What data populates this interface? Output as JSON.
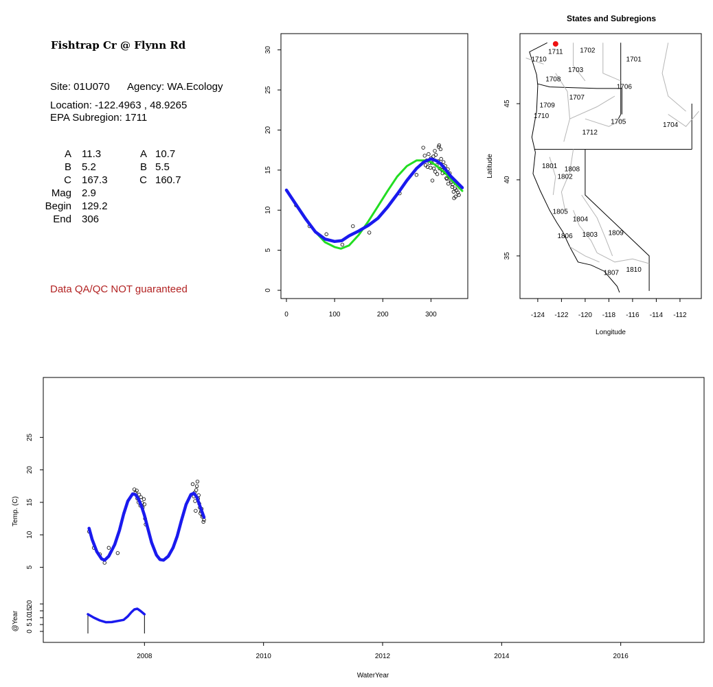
{
  "header": {
    "title": "Fishtrap Cr @ Flynn Rd",
    "site": "Site: 01U070",
    "agency": "Agency: WA.Ecology",
    "location": "Location: -122.4963 , 48.9265",
    "subregion": "EPA Subregion: 1711",
    "qa_note": "Data QA/QC NOT guaranteed"
  },
  "params": {
    "labels": [
      "A",
      "B",
      "C",
      "Mag",
      "Begin",
      "End"
    ],
    "col1": [
      "11.3",
      "5.2",
      "167.3",
      "2.9",
      "129.2",
      "306"
    ],
    "labels2": [
      "A",
      "B",
      "C"
    ],
    "col2": [
      "10.7",
      "5.5",
      "160.7"
    ]
  },
  "colors": {
    "fit_sine": "#22dd22",
    "fit_smooth": "#1a1aee",
    "site_marker": "#ee1111",
    "qa_text": "#b22222"
  },
  "chart_data": [
    {
      "type": "scatter",
      "title": "",
      "xlabel": "",
      "ylabel": "",
      "xlim": [
        0,
        365
      ],
      "ylim": [
        0,
        31
      ],
      "x_ticks": [
        "0",
        "100",
        "200",
        "300"
      ],
      "y_ticks": [
        "0",
        "5",
        "10",
        "15",
        "20",
        "25",
        "30"
      ],
      "points": [
        [
          20,
          10.6
        ],
        [
          48,
          8.0
        ],
        [
          83,
          7.0
        ],
        [
          116,
          5.7
        ],
        [
          138,
          8.0
        ],
        [
          172,
          7.2
        ],
        [
          235,
          12.1
        ],
        [
          270,
          14.4
        ],
        [
          284,
          17.8
        ],
        [
          287,
          16.8
        ],
        [
          289,
          15.6
        ],
        [
          291,
          16.2
        ],
        [
          293,
          15.4
        ],
        [
          295,
          17.0
        ],
        [
          297,
          15.9
        ],
        [
          299,
          15.3
        ],
        [
          300,
          16.5
        ],
        [
          302,
          15.9
        ],
        [
          303,
          13.7
        ],
        [
          305,
          16.7
        ],
        [
          306,
          15.2
        ],
        [
          308,
          17.4
        ],
        [
          309,
          14.8
        ],
        [
          310,
          16.9
        ],
        [
          312,
          15.6
        ],
        [
          313,
          14.5
        ],
        [
          315,
          16.1
        ],
        [
          316,
          17.9
        ],
        [
          317,
          18.1
        ],
        [
          318,
          15.2
        ],
        [
          320,
          17.6
        ],
        [
          321,
          16.4
        ],
        [
          323,
          15.0
        ],
        [
          324,
          14.6
        ],
        [
          326,
          16.0
        ],
        [
          327,
          15.3
        ],
        [
          329,
          14.7
        ],
        [
          330,
          15.5
        ],
        [
          332,
          14.0
        ],
        [
          333,
          13.9
        ],
        [
          335,
          15.1
        ],
        [
          336,
          13.3
        ],
        [
          338,
          14.2
        ],
        [
          339,
          14.6
        ],
        [
          341,
          13.7
        ],
        [
          342,
          13.5
        ],
        [
          344,
          12.9
        ],
        [
          345,
          13.2
        ],
        [
          347,
          12.3
        ],
        [
          348,
          11.5
        ],
        [
          350,
          12.7
        ],
        [
          351,
          11.7
        ],
        [
          353,
          12.5
        ],
        [
          355,
          13.3
        ],
        [
          356,
          12.2
        ],
        [
          358,
          11.9
        ]
      ],
      "series": [
        {
          "name": "",
          "color": "#22dd22",
          "x": [
            0,
            20,
            40,
            60,
            80,
            100,
            113,
            130,
            150,
            170,
            190,
            210,
            230,
            250,
            270,
            290,
            300,
            310,
            330,
            350,
            365
          ],
          "y": [
            12.5,
            10.8,
            9.0,
            7.3,
            6.0,
            5.4,
            5.2,
            5.6,
            6.9,
            8.6,
            10.5,
            12.4,
            14.2,
            15.5,
            16.2,
            16.2,
            16.0,
            15.6,
            14.6,
            13.3,
            12.4
          ]
        },
        {
          "name": "",
          "color": "#1a1aee",
          "x": [
            0,
            20,
            40,
            60,
            80,
            100,
            115,
            130,
            150,
            170,
            190,
            210,
            230,
            250,
            270,
            285,
            300,
            310,
            320,
            330,
            340,
            350,
            360,
            365
          ],
          "y": [
            12.5,
            10.7,
            8.9,
            7.3,
            6.4,
            6.1,
            6.2,
            6.8,
            7.4,
            8.1,
            9.0,
            10.4,
            12.0,
            13.7,
            15.2,
            16.0,
            16.4,
            16.2,
            15.8,
            15.1,
            14.3,
            13.7,
            13.1,
            12.8
          ]
        }
      ]
    },
    {
      "type": "map",
      "title": "States and Subregions",
      "xlabel": "Longitude",
      "ylabel": "Latitude",
      "xlim": [
        -125.5,
        -110.2
      ],
      "ylim": [
        32.2,
        49.6
      ],
      "x_ticks": [
        "-124",
        "-122",
        "-120",
        "-118",
        "-116",
        "-114",
        "-112"
      ],
      "y_ticks": [
        "35",
        "40",
        "45"
      ],
      "site": {
        "lon": -122.4963,
        "lat": 48.9265
      },
      "region_labels": [
        {
          "label": "1711",
          "lon": -122.5,
          "lat": 48.4
        },
        {
          "label": "1702",
          "lon": -119.8,
          "lat": 48.5
        },
        {
          "label": "1701",
          "lon": -115.9,
          "lat": 47.9
        },
        {
          "label": "1710",
          "lon": -123.9,
          "lat": 47.9
        },
        {
          "label": "1703",
          "lon": -120.8,
          "lat": 47.2
        },
        {
          "label": "1708",
          "lon": -122.7,
          "lat": 46.6
        },
        {
          "label": "1706",
          "lon": -116.7,
          "lat": 46.1
        },
        {
          "label": "1707",
          "lon": -120.7,
          "lat": 45.4
        },
        {
          "label": "1709",
          "lon": -123.2,
          "lat": 44.9
        },
        {
          "label": "1710",
          "lon": -123.7,
          "lat": 44.2
        },
        {
          "label": "1705",
          "lon": -117.2,
          "lat": 43.8
        },
        {
          "label": "1704",
          "lon": -112.8,
          "lat": 43.6
        },
        {
          "label": "1712",
          "lon": -119.6,
          "lat": 43.1
        },
        {
          "label": "1801",
          "lon": -123.0,
          "lat": 40.9
        },
        {
          "label": "1808",
          "lon": -121.1,
          "lat": 40.7
        },
        {
          "label": "1802",
          "lon": -121.7,
          "lat": 40.2
        },
        {
          "label": "1805",
          "lon": -122.1,
          "lat": 37.9
        },
        {
          "label": "1804",
          "lon": -120.4,
          "lat": 37.4
        },
        {
          "label": "1806",
          "lon": -121.7,
          "lat": 36.3
        },
        {
          "label": "1803",
          "lon": -119.6,
          "lat": 36.4
        },
        {
          "label": "1809",
          "lon": -117.4,
          "lat": 36.5
        },
        {
          "label": "1807",
          "lon": -117.8,
          "lat": 33.9
        },
        {
          "label": "1810",
          "lon": -115.9,
          "lat": 34.1
        }
      ]
    },
    {
      "type": "line",
      "title": "",
      "xlabel": "WaterYear",
      "ylabel": "Temp. (C)",
      "ylabel2": "@Year",
      "xlim": [
        2006.3,
        2017.4
      ],
      "ylim": [
        2.0,
        30.0
      ],
      "ylim2": [
        -3,
        25
      ],
      "x_ticks": [
        "2008",
        "2010",
        "2012",
        "2014",
        "2016"
      ],
      "y_ticks": [
        "5",
        "10",
        "15",
        "20",
        "25"
      ],
      "y_ticks2": [
        "0",
        "5",
        "10",
        "15",
        "20"
      ],
      "points": [
        [
          2007.07,
          10.5
        ],
        [
          2007.15,
          8.0
        ],
        [
          2007.25,
          7.0
        ],
        [
          2007.33,
          5.7
        ],
        [
          2007.4,
          8.0
        ],
        [
          2007.55,
          7.2
        ],
        [
          2007.83,
          17.0
        ],
        [
          2007.85,
          16.5
        ],
        [
          2007.87,
          16.8
        ],
        [
          2007.88,
          15.6
        ],
        [
          2007.9,
          15.0
        ],
        [
          2007.91,
          16.2
        ],
        [
          2007.93,
          14.5
        ],
        [
          2007.94,
          15.8
        ],
        [
          2007.96,
          14.9
        ],
        [
          2007.97,
          14.2
        ],
        [
          2007.99,
          15.5
        ],
        [
          2008.0,
          14.7
        ],
        [
          2008.01,
          12.5
        ],
        [
          2008.02,
          11.6
        ],
        [
          2008.81,
          17.8
        ],
        [
          2008.83,
          15.9
        ],
        [
          2008.84,
          16.5
        ],
        [
          2008.85,
          15.2
        ],
        [
          2008.86,
          13.7
        ],
        [
          2008.87,
          16.9
        ],
        [
          2008.88,
          17.5
        ],
        [
          2008.89,
          18.2
        ],
        [
          2008.9,
          15.6
        ],
        [
          2008.91,
          16.1
        ],
        [
          2008.92,
          14.8
        ],
        [
          2008.93,
          14.2
        ],
        [
          2008.94,
          13.3
        ],
        [
          2008.95,
          13.6
        ],
        [
          2008.96,
          14.0
        ],
        [
          2008.97,
          12.8
        ],
        [
          2008.98,
          13.0
        ],
        [
          2008.99,
          12.0
        ],
        [
          2009.0,
          12.3
        ]
      ],
      "series": [
        {
          "name": "",
          "color": "#1a1aee",
          "x": [
            2007.07,
            2007.12,
            2007.2,
            2007.28,
            2007.33,
            2007.4,
            2007.5,
            2007.58,
            2007.65,
            2007.72,
            2007.8,
            2007.85,
            2007.9,
            2007.95,
            2008.0,
            2008.05,
            2008.12,
            2008.2,
            2008.26,
            2008.32,
            2008.4,
            2008.48,
            2008.55,
            2008.62,
            2008.7,
            2008.78,
            2008.83,
            2008.88,
            2008.93,
            2009.0
          ],
          "y": [
            11.0,
            9.3,
            7.4,
            6.3,
            6.1,
            6.7,
            8.5,
            10.7,
            13.2,
            15.2,
            16.3,
            16.2,
            15.5,
            14.4,
            13.0,
            11.2,
            8.8,
            6.9,
            6.2,
            6.1,
            6.7,
            8.0,
            9.8,
            12.2,
            14.7,
            16.2,
            16.4,
            15.8,
            14.5,
            12.7
          ]
        }
      ],
      "annual_series": {
        "name": "",
        "color": "#1a1aee",
        "x": [
          2007.05,
          2007.15,
          2007.25,
          2007.35,
          2007.45,
          2007.55,
          2007.65,
          2007.72,
          2007.78,
          2007.83,
          2007.88,
          2007.93,
          2008.0
        ],
        "y": [
          12.5,
          10.0,
          8.0,
          6.7,
          6.8,
          7.6,
          8.4,
          11.0,
          14.0,
          16.0,
          16.5,
          15.0,
          12.5
        ],
        "start": 2007.05,
        "end": 2008.0
      }
    }
  ]
}
